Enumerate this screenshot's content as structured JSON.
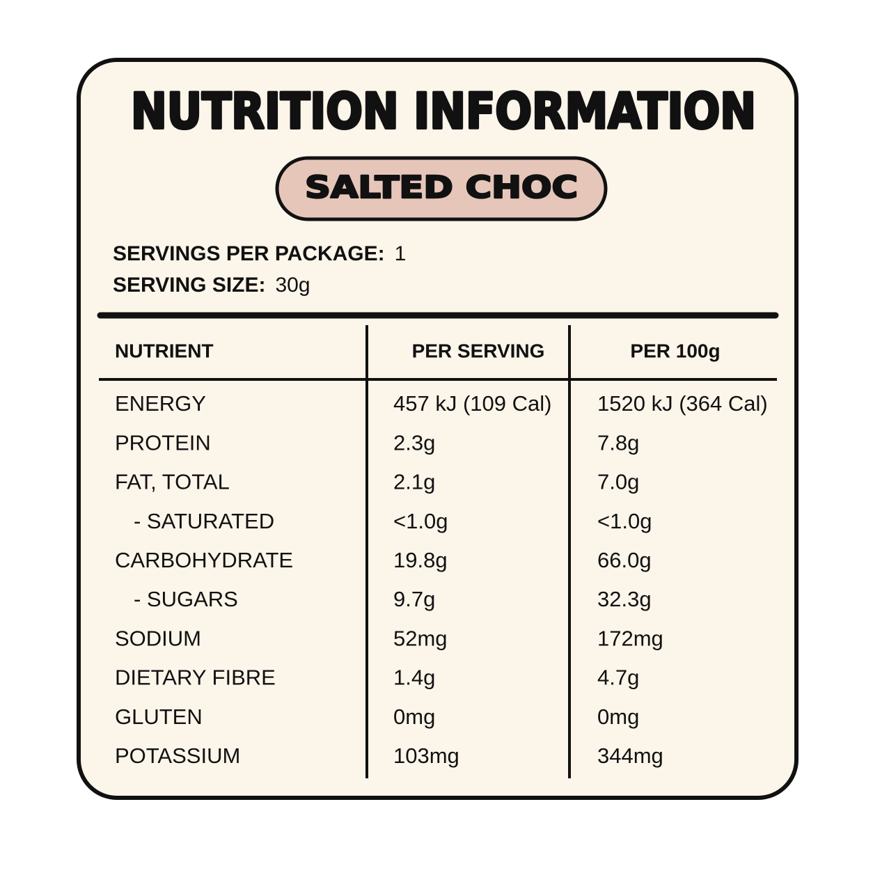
{
  "header": {
    "title": "NUTRITION INFORMATION",
    "flavour": "SALTED CHOC"
  },
  "servings": [
    {
      "label": "SERVINGS PER PACKAGE:",
      "value": "1"
    },
    {
      "label": "SERVING SIZE:",
      "value": "30g"
    }
  ],
  "table": {
    "columns": [
      "NUTRIENT",
      "PER SERVING",
      "PER 100g"
    ],
    "rows": [
      [
        "ENERGY",
        "457 kJ (109 Cal)",
        "1520 kJ (364 Cal)"
      ],
      [
        "PROTEIN",
        "2.3g",
        "7.8g"
      ],
      [
        "FAT, TOTAL",
        "2.1g",
        "7.0g"
      ],
      [
        "- SATURATED",
        "<1.0g",
        "<1.0g"
      ],
      [
        "CARBOHYDRATE",
        "19.8g",
        "66.0g"
      ],
      [
        "- SUGARS",
        "9.7g",
        "32.3g"
      ],
      [
        "SODIUM",
        "52mg",
        "172mg"
      ],
      [
        "DIETARY FIBRE",
        "1.4g",
        "4.7g"
      ],
      [
        "GLUTEN",
        "0mg",
        "0mg"
      ],
      [
        "POTASSIUM",
        "103mg",
        "344mg"
      ]
    ]
  }
}
